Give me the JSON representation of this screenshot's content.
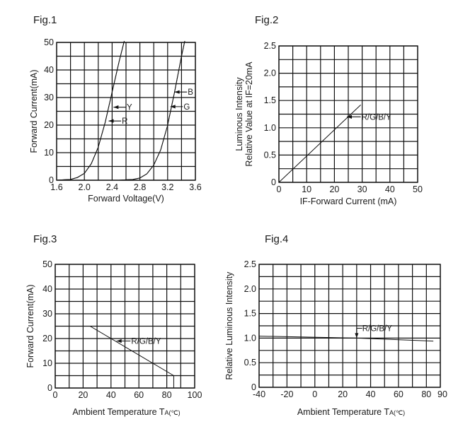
{
  "chart_data": [
    {
      "id": "fig1",
      "type": "line",
      "fig_label": "Fig.1",
      "xlabel": "Forward Voltage(V)",
      "ylabel": "Forward Current(mA)",
      "xlim": [
        1.6,
        3.6
      ],
      "ylim": [
        0,
        50
      ],
      "xticks": [
        "1.6",
        "2.0",
        "2.4",
        "2.8",
        "3.2",
        "3.6"
      ],
      "yticks": [
        "0",
        "10",
        "20",
        "30",
        "40",
        "50"
      ],
      "grid": true,
      "series": [
        {
          "name": "R",
          "x": [
            1.6,
            1.8,
            1.9,
            2.0,
            2.1,
            2.2,
            2.3,
            2.4,
            2.5,
            2.6
          ],
          "y": [
            0,
            0.3,
            1.0,
            2.5,
            6,
            12,
            21,
            32,
            43,
            53
          ]
        },
        {
          "name": "Y",
          "x": [
            1.6,
            1.8,
            1.9,
            2.0,
            2.1,
            2.2,
            2.3,
            2.4,
            2.5,
            2.6
          ],
          "y": [
            0,
            0.3,
            1.0,
            2.5,
            6,
            12,
            21,
            32,
            43,
            53
          ]
        },
        {
          "name": "G",
          "x": [
            2.5,
            2.7,
            2.8,
            2.9,
            3.0,
            3.1,
            3.2,
            3.3,
            3.4,
            3.46
          ],
          "y": [
            0,
            0.3,
            0.8,
            2.3,
            5.5,
            11,
            20,
            32,
            45,
            52
          ]
        },
        {
          "name": "B",
          "x": [
            2.5,
            2.7,
            2.8,
            2.9,
            3.0,
            3.1,
            3.2,
            3.3,
            3.4,
            3.46
          ],
          "y": [
            0,
            0.3,
            0.8,
            2.3,
            5.5,
            11,
            20,
            32,
            45,
            52
          ]
        }
      ],
      "labels": [
        {
          "text": "Y",
          "x": 2.42,
          "y": 26.5,
          "x_end": 2.6
        },
        {
          "text": "R",
          "x": 2.35,
          "y": 21.5,
          "x_end": 2.53
        },
        {
          "text": "B",
          "x": 3.3,
          "y": 32,
          "x_end": 3.48
        },
        {
          "text": "G",
          "x": 3.24,
          "y": 26.7,
          "x_end": 3.42
        }
      ]
    },
    {
      "id": "fig2",
      "type": "line",
      "fig_label": "Fig.2",
      "xlabel": "IF-Forward Current (mA)",
      "ylabel": "Luminous Intensity",
      "ylabel2": "Relative Value at IF=20mA",
      "xlim": [
        0,
        50
      ],
      "ylim": [
        0,
        2.5
      ],
      "xticks": [
        "0",
        "10",
        "20",
        "30",
        "40",
        "50"
      ],
      "yticks": [
        "0",
        "0.5",
        "1.0",
        "1.5",
        "2.0",
        "2.5"
      ],
      "grid": true,
      "series": [
        {
          "name": "R/G/B/Y",
          "x": [
            0,
            29.5
          ],
          "y": [
            0,
            1.42
          ]
        }
      ],
      "labels": [
        {
          "text": "R/G/B/Y",
          "x": 24.5,
          "y": 1.2,
          "x_end": 29.5
        }
      ]
    },
    {
      "id": "fig3",
      "type": "line",
      "fig_label": "Fig.3",
      "xlabel": "Ambient Temperature T",
      "xlabel_sub": "A",
      "xlabel_unit": "(℃)",
      "ylabel": "Forward Current(mA)",
      "xlim": [
        0,
        100
      ],
      "ylim": [
        0,
        50
      ],
      "xticks": [
        "0",
        "20",
        "40",
        "60",
        "80",
        "100"
      ],
      "yticks": [
        "0",
        "10",
        "20",
        "30",
        "40",
        "50"
      ],
      "grid": true,
      "series": [
        {
          "name": "R/G/B/Y",
          "x": [
            0,
            25,
            85,
            85
          ],
          "y": [
            25,
            25,
            5,
            0
          ]
        }
      ],
      "labels": [
        {
          "text": "R/G/B/Y",
          "x": 44,
          "y": 19,
          "x_end": 54
        }
      ]
    },
    {
      "id": "fig4",
      "type": "line",
      "fig_label": "Fig.4",
      "xlabel": "Ambient Temperature T",
      "xlabel_sub": "A",
      "xlabel_unit": "(℃)",
      "ylabel": "Relative Luminous Intensity",
      "xlim": [
        -40,
        90
      ],
      "ylim": [
        0,
        2.5
      ],
      "xticks": [
        "-40",
        "-20",
        "0",
        "20",
        "40",
        "60",
        "80",
        "90"
      ],
      "yticks": [
        "0",
        "0.5",
        "1.0",
        "1.5",
        "2.0",
        "2.5"
      ],
      "grid": true,
      "series": [
        {
          "name": "R/G/B/Y",
          "x": [
            -40,
            30,
            85
          ],
          "y": [
            1.04,
            1.0,
            0.94
          ]
        }
      ],
      "labels": [
        {
          "text": "R/G/B/Y",
          "x": 30,
          "y": 1.0,
          "y_end": 1.2,
          "x_text": 34
        }
      ]
    }
  ]
}
